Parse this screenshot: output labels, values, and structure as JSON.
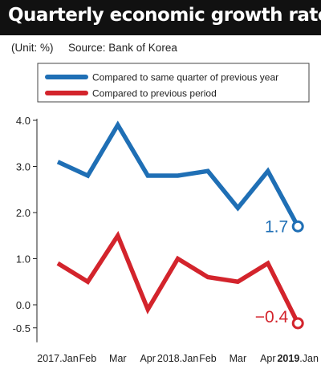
{
  "header": {
    "title": "Quarterly economic growth rate",
    "unit": "(Unit: %)",
    "source": "Source: Bank of Korea"
  },
  "colors": {
    "blue": "#1f6fb5",
    "red": "#d3242c",
    "title_bg": "#111111"
  },
  "chart_data": {
    "type": "line",
    "title": "Quarterly economic growth rate",
    "ylabel": "",
    "xlabel": "",
    "ylim": [
      -0.5,
      4.0
    ],
    "yticks": [
      "4.0",
      "3.0",
      "2.0",
      "1.0",
      "0.0",
      "-0.5"
    ],
    "categories": [
      "2017.Jan",
      "Feb",
      "Mar",
      "Apr",
      "2018.Jan",
      "Feb",
      "Mar",
      "Apr",
      "2019.Jan"
    ],
    "grid": false,
    "legend": "top",
    "series": [
      {
        "name": "Compared to same quarter of previous year",
        "color": "#1f6fb5",
        "values": [
          3.1,
          2.8,
          3.9,
          2.8,
          2.8,
          2.9,
          2.1,
          2.9,
          1.7
        ],
        "end_label": "1.7"
      },
      {
        "name": "Compared to previous period",
        "color": "#d3242c",
        "values": [
          0.9,
          0.5,
          1.5,
          -0.1,
          1.0,
          0.6,
          0.5,
          0.9,
          -0.4
        ],
        "end_label": "−0.4"
      }
    ]
  }
}
